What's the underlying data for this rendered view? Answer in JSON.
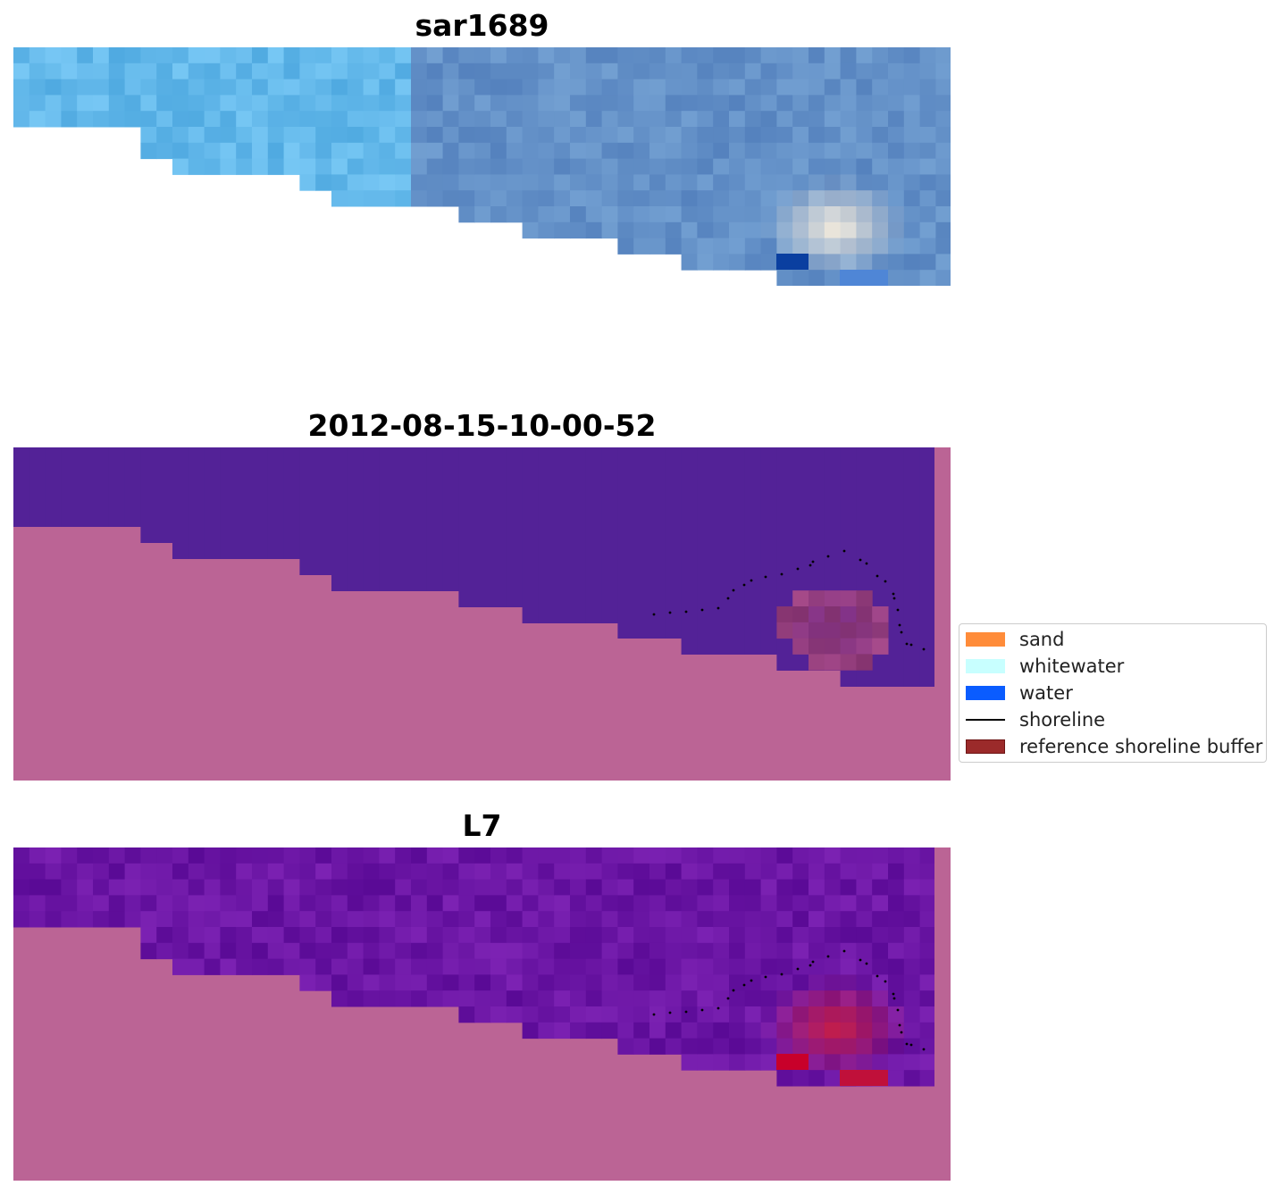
{
  "panels": [
    {
      "title": "sar1689"
    },
    {
      "title": "2012-08-15-10-00-52"
    },
    {
      "title": "L7"
    }
  ],
  "legend": {
    "items": [
      {
        "label": "sand",
        "color": "#ff8c3a",
        "kind": "patch"
      },
      {
        "label": "whitewater",
        "color": "#c8ffff",
        "kind": "patch"
      },
      {
        "label": "water",
        "color": "#0a5cff",
        "kind": "patch"
      },
      {
        "label": "shoreline",
        "color": "#000000",
        "kind": "line"
      },
      {
        "label": "reference shoreline buffer",
        "color": "#9b2a2a",
        "kind": "patch"
      }
    ]
  }
}
